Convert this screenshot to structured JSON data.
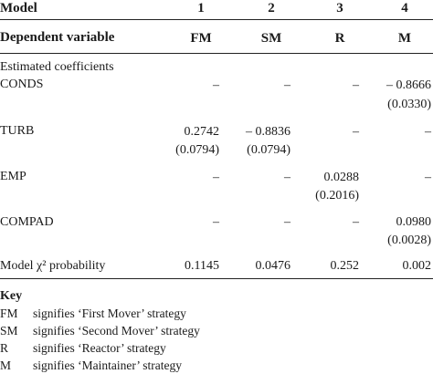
{
  "header": {
    "model_label": "Model",
    "model_numbers": [
      "1",
      "2",
      "3",
      "4"
    ],
    "dependent_label": "Dependent variable",
    "dependent_values": [
      "FM",
      "SM",
      "R",
      "M"
    ]
  },
  "section_title": "Estimated coefficients",
  "rows": [
    {
      "label": "CONDS",
      "values": [
        "–",
        "–",
        "–",
        "– 0.8666"
      ],
      "se": [
        "",
        "",
        "",
        "(0.0330)"
      ]
    },
    {
      "label": "TURB",
      "values": [
        "0.2742",
        "– 0.8836",
        "–",
        "–"
      ],
      "se": [
        "(0.0794)",
        "(0.0794)",
        "",
        ""
      ]
    },
    {
      "label": "EMP",
      "values": [
        "–",
        "–",
        "0.0288",
        "–"
      ],
      "se": [
        "",
        "",
        "(0.2016)",
        ""
      ]
    },
    {
      "label": "COMPAD",
      "values": [
        "–",
        "–",
        "–",
        "0.0980"
      ],
      "se": [
        "",
        "",
        "",
        "(0.0028)"
      ]
    }
  ],
  "chi": {
    "label": "Model χ² probability",
    "values": [
      "0.1145",
      "0.0476",
      "0.252",
      "0.002"
    ]
  },
  "key": {
    "title": "Key",
    "items": [
      {
        "abbr": "FM",
        "text": "signifies ‘First Mover’ strategy"
      },
      {
        "abbr": "SM",
        "text": "signifies ‘Second Mover’ strategy"
      },
      {
        "abbr": "R",
        "text": "signifies ‘Reactor’ strategy"
      },
      {
        "abbr": "M",
        "text": "signifies ‘Maintainer’ strategy"
      }
    ]
  }
}
